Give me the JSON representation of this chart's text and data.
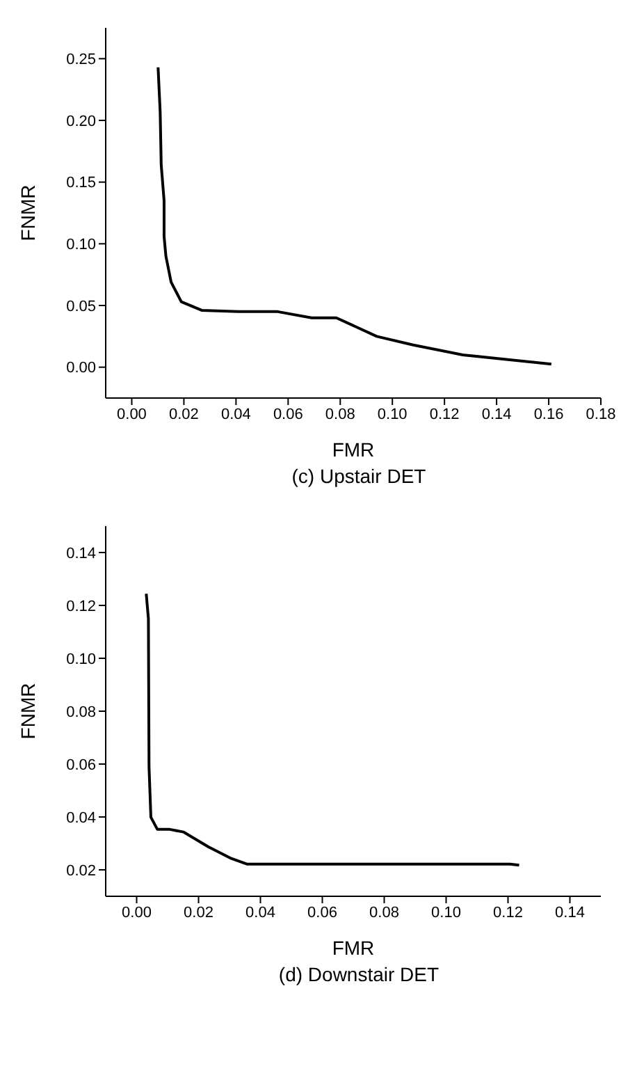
{
  "chart_data": [
    {
      "type": "line",
      "xlabel": "FMR",
      "ylabel": "FNMR",
      "annotations": [
        "(c) Upstair DET"
      ],
      "marker": "none",
      "line_style": "solid",
      "grid": false,
      "legend": false,
      "series": [
        {
          "color": "#000000",
          "x": [
            0.0101,
            0.0109,
            0.0113,
            0.0124,
            0.0124,
            0.0131,
            0.0151,
            0.019,
            0.027,
            0.041,
            0.056,
            0.069,
            0.0785,
            0.094,
            0.108,
            0.127,
            0.161
          ],
          "values": [
            0.243,
            0.207,
            0.164,
            0.135,
            0.106,
            0.09,
            0.069,
            0.053,
            0.046,
            0.045,
            0.045,
            0.04,
            0.04,
            0.025,
            0.018,
            0.01,
            0.0025
          ]
        }
      ],
      "xlim": [
        -0.01,
        0.18
      ],
      "ylim": [
        -0.025,
        0.275
      ],
      "xticks": [
        {
          "value": 0,
          "label": "0.00"
        },
        {
          "value": 0.02,
          "label": "0.02"
        },
        {
          "value": 0.04,
          "label": "0.04"
        },
        {
          "value": 0.06,
          "label": "0.06"
        },
        {
          "value": 0.08,
          "label": "0.08"
        },
        {
          "value": 0.1,
          "label": "0.10"
        },
        {
          "value": 0.12,
          "label": "0.12"
        },
        {
          "value": 0.14,
          "label": "0.14"
        },
        {
          "value": 0.16,
          "label": "0.16"
        },
        {
          "value": 0.18,
          "label": "0.18"
        }
      ],
      "yticks": [
        {
          "value": 0,
          "label": "0.00"
        },
        {
          "value": 0.05,
          "label": "0.05"
        },
        {
          "value": 0.1,
          "label": "0.10"
        },
        {
          "value": 0.15,
          "label": "0.15"
        },
        {
          "value": 0.2,
          "label": "0.20"
        },
        {
          "value": 0.25,
          "label": "0.25"
        }
      ]
    },
    {
      "type": "line",
      "xlabel": "FMR",
      "ylabel": "FNMR",
      "annotations": [
        "(d) Downstair DET"
      ],
      "marker": "none",
      "line_style": "solid",
      "grid": false,
      "legend": false,
      "series": [
        {
          "color": "#000000",
          "x": [
            0.0031,
            0.0038,
            0.004,
            0.0046,
            0.0067,
            0.0107,
            0.0152,
            0.0232,
            0.0306,
            0.0356,
            0.1206,
            0.1236
          ],
          "values": [
            0.1244,
            0.115,
            0.059,
            0.0399,
            0.0353,
            0.0353,
            0.0343,
            0.0287,
            0.0243,
            0.0222,
            0.0222,
            0.0218
          ]
        }
      ],
      "xlim": [
        -0.01,
        0.15
      ],
      "ylim": [
        0.01,
        0.15
      ],
      "xticks": [
        {
          "value": 0,
          "label": "0.00"
        },
        {
          "value": 0.02,
          "label": "0.02"
        },
        {
          "value": 0.04,
          "label": "0.04"
        },
        {
          "value": 0.06,
          "label": "0.06"
        },
        {
          "value": 0.08,
          "label": "0.08"
        },
        {
          "value": 0.1,
          "label": "0.10"
        },
        {
          "value": 0.12,
          "label": "0.12"
        },
        {
          "value": 0.14,
          "label": "0.14"
        }
      ],
      "yticks": [
        {
          "value": 0.02,
          "label": "0.02"
        },
        {
          "value": 0.04,
          "label": "0.04"
        },
        {
          "value": 0.06,
          "label": "0.06"
        },
        {
          "value": 0.08,
          "label": "0.08"
        },
        {
          "value": 0.1,
          "label": "0.10"
        },
        {
          "value": 0.12,
          "label": "0.12"
        },
        {
          "value": 0.14,
          "label": "0.14"
        }
      ]
    }
  ]
}
